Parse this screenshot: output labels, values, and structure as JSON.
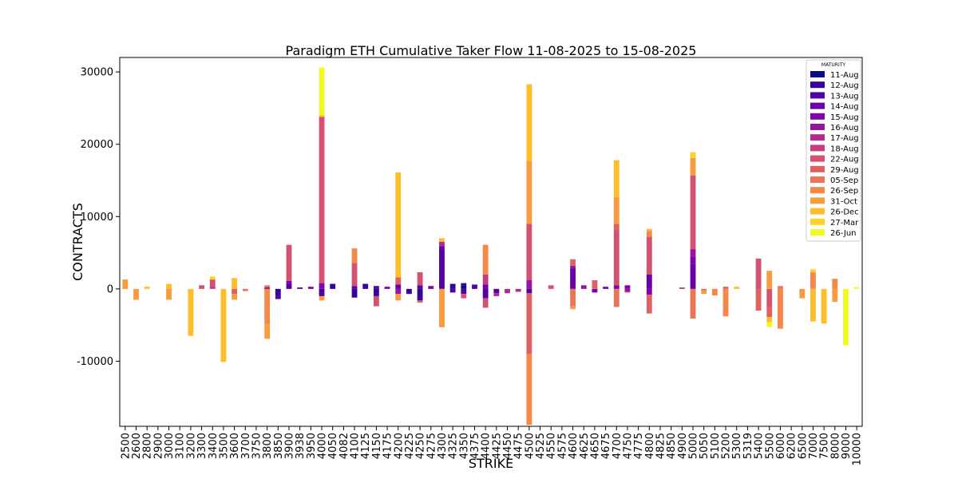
{
  "chart_data": {
    "type": "bar",
    "stacked": true,
    "title": "Paradigm ETH Cumulative Taker Flow 11-08-2025 to 15-08-2025",
    "xlabel": "STRIKE",
    "ylabel": "CONTRACTS",
    "ylim": [
      -19000,
      32000
    ],
    "yticks": [
      -10000,
      0,
      10000,
      20000,
      30000
    ],
    "legend_title": "MATURITY",
    "legend_position": "top-right",
    "categories": [
      "2500",
      "2600",
      "2800",
      "2900",
      "3000",
      "3100",
      "3200",
      "3300",
      "3400",
      "3500",
      "3600",
      "3700",
      "3750",
      "3800",
      "3850",
      "3900",
      "3938",
      "3950",
      "4000",
      "4050",
      "4082",
      "4100",
      "4125",
      "4150",
      "4175",
      "4200",
      "4225",
      "4250",
      "4275",
      "4300",
      "4325",
      "4350",
      "4375",
      "4400",
      "4425",
      "4450",
      "4475",
      "4500",
      "4525",
      "4550",
      "4575",
      "4600",
      "4625",
      "4650",
      "4675",
      "4700",
      "4750",
      "4775",
      "4800",
      "4825",
      "4850",
      "4900",
      "5000",
      "5050",
      "5100",
      "5200",
      "5300",
      "5319",
      "5400",
      "5500",
      "6000",
      "6200",
      "6500",
      "7000",
      "7500",
      "8000",
      "9000",
      "10000"
    ],
    "series": [
      {
        "name": "11-Aug",
        "color": "#0d0887",
        "values": [
          0,
          0,
          0,
          0,
          0,
          0,
          0,
          0,
          0,
          0,
          0,
          0,
          0,
          0,
          0,
          0,
          0,
          0,
          0,
          0,
          0,
          0,
          0,
          0,
          0,
          0,
          0,
          0,
          0,
          0,
          0,
          500,
          0,
          0,
          0,
          0,
          0,
          0,
          0,
          0,
          0,
          0,
          0,
          0,
          0,
          0,
          0,
          0,
          0,
          0,
          0,
          0,
          0,
          0,
          0,
          0,
          0,
          0,
          0,
          0,
          0,
          0,
          0,
          0,
          0,
          0,
          0,
          0
        ]
      },
      {
        "name": "12-Aug",
        "color": "#350498",
        "values": [
          0,
          0,
          0,
          0,
          0,
          0,
          0,
          0,
          0,
          0,
          0,
          0,
          0,
          0,
          -900,
          0,
          0,
          0,
          -400,
          700,
          0,
          -1200,
          700,
          -1000,
          0,
          0,
          -700,
          -1600,
          0,
          0,
          700,
          300,
          0,
          0,
          0,
          0,
          0,
          0,
          0,
          0,
          0,
          0,
          0,
          0,
          0,
          0,
          0,
          0,
          0,
          0,
          0,
          0,
          0,
          0,
          0,
          0,
          0,
          0,
          0,
          0,
          0,
          0,
          0,
          0,
          0,
          0,
          0,
          0
        ]
      },
      {
        "name": "13-Aug",
        "color": "#5302a3",
        "values": [
          0,
          0,
          0,
          0,
          0,
          0,
          0,
          0,
          0,
          0,
          0,
          0,
          0,
          0,
          -500,
          800,
          200,
          0,
          -600,
          0,
          0,
          400,
          0,
          400,
          0,
          0,
          0,
          500,
          0,
          5500,
          -500,
          -700,
          600,
          -1300,
          -600,
          0,
          0,
          -600,
          0,
          0,
          0,
          0,
          0,
          0,
          0,
          0,
          0,
          0,
          0,
          0,
          0,
          0,
          0,
          0,
          0,
          0,
          0,
          0,
          0,
          0,
          0,
          0,
          0,
          0,
          0,
          0,
          0,
          0
        ]
      },
      {
        "name": "14-Aug",
        "color": "#6a00a8",
        "values": [
          0,
          0,
          0,
          0,
          0,
          0,
          0,
          0,
          0,
          0,
          0,
          0,
          0,
          0,
          0,
          0,
          0,
          0,
          0,
          0,
          0,
          0,
          0,
          0,
          0,
          600,
          0,
          0,
          0,
          400,
          0,
          0,
          0,
          600,
          0,
          0,
          0,
          0,
          0,
          0,
          0,
          2800,
          0,
          0,
          0,
          0,
          0,
          0,
          2000,
          0,
          0,
          0,
          3500,
          0,
          0,
          0,
          0,
          0,
          0,
          0,
          0,
          0,
          0,
          0,
          0,
          0,
          0,
          0
        ]
      },
      {
        "name": "15-Aug",
        "color": "#7e03a8",
        "values": [
          0,
          0,
          0,
          0,
          0,
          0,
          0,
          0,
          0,
          0,
          0,
          0,
          0,
          200,
          0,
          300,
          0,
          300,
          800,
          0,
          0,
          0,
          0,
          0,
          300,
          0,
          0,
          0,
          400,
          0,
          0,
          0,
          0,
          0,
          0,
          0,
          0,
          0,
          0,
          0,
          0,
          0,
          0,
          -500,
          300,
          500,
          500,
          0,
          -800,
          0,
          0,
          0,
          1000,
          0,
          0,
          0,
          0,
          0,
          0,
          0,
          0,
          0,
          0,
          0,
          0,
          0,
          0,
          0
        ]
      },
      {
        "name": "16-Aug",
        "color": "#9814a0",
        "values": [
          0,
          0,
          0,
          0,
          0,
          0,
          0,
          0,
          0,
          0,
          0,
          0,
          0,
          0,
          0,
          0,
          0,
          0,
          0,
          0,
          0,
          0,
          0,
          0,
          0,
          -700,
          0,
          0,
          0,
          0,
          0,
          0,
          0,
          0,
          0,
          0,
          0,
          1200,
          0,
          0,
          0,
          400,
          500,
          0,
          0,
          0,
          -400,
          0,
          0,
          0,
          0,
          0,
          1000,
          0,
          0,
          0,
          0,
          0,
          0,
          0,
          0,
          0,
          0,
          0,
          0,
          0,
          0,
          0
        ]
      },
      {
        "name": "17-Aug",
        "color": "#b12a90",
        "values": [
          0,
          0,
          0,
          0,
          0,
          0,
          0,
          0,
          0,
          0,
          0,
          0,
          0,
          0,
          0,
          0,
          0,
          0,
          0,
          0,
          0,
          0,
          0,
          0,
          0,
          0,
          0,
          0,
          0,
          600,
          0,
          0,
          0,
          0,
          -400,
          -600,
          -400,
          0,
          0,
          0,
          0,
          0,
          0,
          0,
          0,
          0,
          0,
          0,
          0,
          0,
          0,
          0,
          0,
          0,
          0,
          0,
          0,
          0,
          0,
          0,
          0,
          0,
          0,
          0,
          0,
          0,
          0,
          0
        ]
      },
      {
        "name": "18-Aug",
        "color": "#c33d80",
        "values": [
          0,
          0,
          0,
          0,
          0,
          0,
          0,
          0,
          400,
          0,
          0,
          0,
          0,
          0,
          0,
          0,
          0,
          0,
          0,
          0,
          0,
          0,
          0,
          0,
          0,
          0,
          0,
          0,
          0,
          0,
          0,
          0,
          0,
          1400,
          0,
          0,
          0,
          0,
          0,
          0,
          0,
          0,
          0,
          0,
          0,
          0,
          0,
          0,
          0,
          0,
          0,
          200,
          0,
          0,
          0,
          0,
          0,
          0,
          0,
          0,
          0,
          0,
          0,
          0,
          0,
          0,
          0,
          0
        ]
      },
      {
        "name": "22-Aug",
        "color": "#d35171",
        "values": [
          0,
          0,
          0,
          0,
          0,
          0,
          0,
          500,
          900,
          0,
          0,
          0,
          0,
          0,
          0,
          5000,
          0,
          0,
          23000,
          0,
          0,
          3200,
          0,
          -1400,
          0,
          0,
          0,
          1800,
          0,
          0,
          0,
          -600,
          0,
          -1300,
          0,
          0,
          0,
          7800,
          0,
          500,
          0,
          0,
          0,
          0,
          0,
          7600,
          0,
          0,
          5200,
          0,
          0,
          0,
          10200,
          0,
          0,
          0,
          0,
          0,
          4200,
          -2500,
          0,
          0,
          0,
          0,
          0,
          0,
          0,
          0
        ]
      },
      {
        "name": "29-Aug",
        "color": "#df6263",
        "values": [
          0,
          0,
          0,
          0,
          0,
          0,
          0,
          0,
          0,
          0,
          -700,
          0,
          0,
          0,
          0,
          0,
          0,
          0,
          0,
          0,
          0,
          0,
          0,
          0,
          0,
          1000,
          0,
          -300,
          0,
          0,
          0,
          0,
          0,
          0,
          0,
          0,
          0,
          -8400,
          0,
          0,
          0,
          900,
          0,
          1200,
          0,
          900,
          -100,
          0,
          -2600,
          0,
          0,
          0,
          0,
          -200,
          0,
          300,
          0,
          0,
          -3000,
          -1400,
          0,
          0,
          0,
          0,
          0,
          0,
          0,
          0
        ]
      },
      {
        "name": "05-Sep",
        "color": "#eb7655",
        "values": [
          0,
          0,
          0,
          0,
          0,
          0,
          0,
          0,
          0,
          0,
          0,
          -300,
          0,
          300,
          0,
          0,
          0,
          0,
          0,
          0,
          0,
          0,
          0,
          0,
          0,
          0,
          0,
          0,
          0,
          0,
          0,
          0,
          0,
          0,
          0,
          0,
          0,
          0,
          0,
          0,
          0,
          -2400,
          0,
          0,
          0,
          -2500,
          0,
          0,
          0,
          0,
          0,
          0,
          -4100,
          0,
          0,
          0,
          0,
          0,
          0,
          0,
          400,
          0,
          0,
          0,
          0,
          0,
          0,
          0
        ]
      },
      {
        "name": "26-Sep",
        "color": "#f48849",
        "values": [
          0,
          0,
          0,
          0,
          0,
          0,
          0,
          0,
          0,
          0,
          0,
          0,
          0,
          -4900,
          0,
          0,
          0,
          0,
          0,
          0,
          0,
          2000,
          0,
          0,
          0,
          0,
          0,
          0,
          0,
          0,
          0,
          0,
          0,
          4100,
          0,
          0,
          0,
          -9800,
          0,
          0,
          0,
          0,
          0,
          0,
          0,
          0,
          0,
          0,
          800,
          0,
          0,
          0,
          0,
          0,
          -900,
          -3800,
          0,
          0,
          0,
          0,
          -5500,
          0,
          0,
          2300,
          0,
          1400,
          0,
          0
        ]
      },
      {
        "name": "31-Oct",
        "color": "#f89c3d",
        "values": [
          1300,
          -1500,
          0,
          0,
          -1500,
          0,
          0,
          0,
          0,
          0,
          -800,
          0,
          0,
          -2000,
          0,
          0,
          0,
          0,
          -600,
          0,
          0,
          0,
          0,
          0,
          0,
          -900,
          0,
          0,
          0,
          -5300,
          0,
          0,
          0,
          0,
          0,
          0,
          0,
          8700,
          0,
          0,
          0,
          -400,
          0,
          0,
          0,
          3700,
          0,
          0,
          0,
          0,
          0,
          0,
          2400,
          -500,
          0,
          0,
          0,
          0,
          0,
          2500,
          0,
          0,
          -1300,
          0,
          0,
          -1800,
          0,
          0
        ]
      },
      {
        "name": "26-Dec",
        "color": "#febd2a",
        "values": [
          0,
          0,
          300,
          0,
          700,
          0,
          -6500,
          0,
          0,
          -10100,
          1500,
          0,
          0,
          0,
          0,
          0,
          0,
          0,
          0,
          0,
          0,
          0,
          0,
          0,
          0,
          14500,
          0,
          0,
          0,
          500,
          0,
          0,
          0,
          0,
          0,
          0,
          0,
          10600,
          0,
          0,
          0,
          0,
          0,
          0,
          0,
          5100,
          0,
          0,
          300,
          0,
          0,
          0,
          0,
          0,
          0,
          0,
          300,
          0,
          0,
          -700,
          0,
          0,
          0,
          -4500,
          -4800,
          0,
          0,
          0
        ]
      },
      {
        "name": "27-Mar",
        "color": "#fcd225",
        "values": [
          0,
          0,
          0,
          0,
          0,
          0,
          0,
          0,
          400,
          0,
          0,
          0,
          0,
          0,
          0,
          0,
          0,
          0,
          300,
          0,
          0,
          0,
          0,
          0,
          0,
          0,
          0,
          0,
          0,
          0,
          0,
          0,
          0,
          0,
          0,
          0,
          0,
          0,
          0,
          0,
          0,
          0,
          0,
          0,
          0,
          0,
          0,
          0,
          0,
          0,
          0,
          0,
          800,
          0,
          0,
          0,
          0,
          0,
          0,
          0,
          0,
          0,
          0,
          400,
          0,
          0,
          0,
          0
        ]
      },
      {
        "name": "26-Jun",
        "color": "#f0f921",
        "values": [
          0,
          0,
          0,
          0,
          0,
          0,
          0,
          0,
          0,
          0,
          0,
          0,
          0,
          0,
          0,
          0,
          0,
          0,
          6500,
          0,
          0,
          0,
          0,
          0,
          0,
          0,
          0,
          0,
          0,
          0,
          0,
          0,
          0,
          0,
          0,
          0,
          0,
          0,
          0,
          0,
          0,
          0,
          0,
          0,
          0,
          0,
          0,
          0,
          0,
          0,
          0,
          0,
          0,
          0,
          0,
          0,
          0,
          0,
          0,
          -700,
          0,
          0,
          0,
          0,
          0,
          0,
          -7800,
          200
        ]
      }
    ]
  }
}
